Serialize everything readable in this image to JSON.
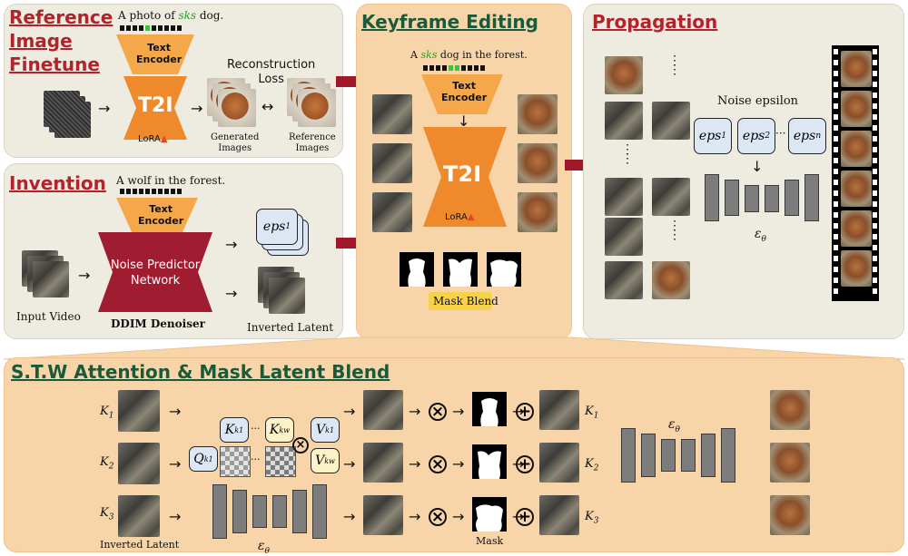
{
  "ref": {
    "title": "Reference\nImage\nFinetune",
    "prompt_pre": "A photo of ",
    "prompt_token": "sks",
    "prompt_post": " dog.",
    "encoder": "Text\nEncoder",
    "t2i": "T2I",
    "lora": "LoRA",
    "loss": "Reconstruction\nLoss",
    "generated": "Generated\nImages",
    "reference": "Reference\nImages"
  },
  "inv": {
    "title": "Invention",
    "prompt": "A wolf in the forest.",
    "encoder": "Text\nEncoder",
    "network": "Noise Predictor\nNetwork",
    "denoiser": "DDIM Denoiser",
    "input_video": "Input Video",
    "eps": "eps",
    "eps_sub": "1",
    "inverted": "Inverted Latent"
  },
  "key": {
    "title": "Keyframe Editing",
    "prompt_pre": "A ",
    "prompt_token": "sks",
    "prompt_post": " dog in the forest.",
    "encoder": "Text\nEncoder",
    "t2i": "T2I",
    "lora": "LoRA",
    "mask_blend": "Mask Blend"
  },
  "prop": {
    "title": "Propagation",
    "noise": "Noise epsilon",
    "eps": [
      "eps",
      "eps",
      "eps"
    ],
    "eps_subs": [
      "1",
      "2",
      "n"
    ],
    "unet_label": "ε",
    "unet_sub": "θ"
  },
  "stw": {
    "title": "S.T.W Attention & Mask Latent Blend",
    "k_labels": [
      "K",
      "K",
      "K"
    ],
    "k_subs": [
      "1",
      "2",
      "3"
    ],
    "inverted": "Inverted Latent",
    "unet_label": "ε",
    "unet_sub": "θ",
    "kk1": "K",
    "kk1_sub": "k1",
    "kkw": "K",
    "kkw_sub": "kw",
    "vk1": "V",
    "vk1_sub": "k1",
    "vkw": "V",
    "vkw_sub": "kw",
    "qk1": "Q",
    "qk1_sub": "k1",
    "mask": "Mask",
    "eps_label": "ε",
    "eps_sub": "θ"
  },
  "colors": {
    "encoder": "#f5a84a",
    "t2i": "#ef8a2c",
    "network": "#a01d31",
    "arrow_red": "#a0182a"
  }
}
